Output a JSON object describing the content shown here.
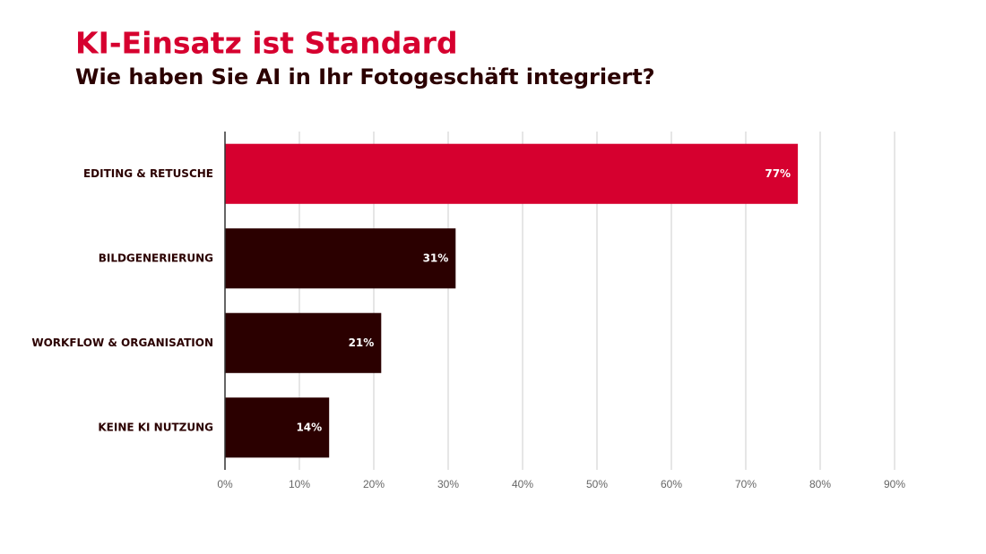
{
  "chart_data": {
    "type": "bar",
    "orientation": "horizontal",
    "title": "KI-Einsatz ist Standard",
    "subtitle": "Wie haben Sie AI in Ihr Fotogeschäft integriert?",
    "categories": [
      "EDITING & RETUSCHE",
      "BILDGENERIERUNG",
      "WORKFLOW & ORGANISATION",
      "KEINE KI NUTZUNG"
    ],
    "values": [
      77,
      31,
      21,
      14
    ],
    "value_labels": [
      "77%",
      "31%",
      "21%",
      "14%"
    ],
    "colors": [
      "#d6002f",
      "#2b0000",
      "#2b0000",
      "#2b0000"
    ],
    "xlim": [
      0,
      90
    ],
    "xticks": [
      {
        "value": 0,
        "label": "0%"
      },
      {
        "value": 10,
        "label": "10%"
      },
      {
        "value": 20,
        "label": "20%"
      },
      {
        "value": 30,
        "label": "30%"
      },
      {
        "value": 40,
        "label": "40%"
      },
      {
        "value": 50,
        "label": "50%"
      },
      {
        "value": 60,
        "label": "60%"
      },
      {
        "value": 70,
        "label": "70%"
      },
      {
        "value": 80,
        "label": "80%"
      },
      {
        "value": 90,
        "label": "90%"
      }
    ],
    "grid": true
  }
}
